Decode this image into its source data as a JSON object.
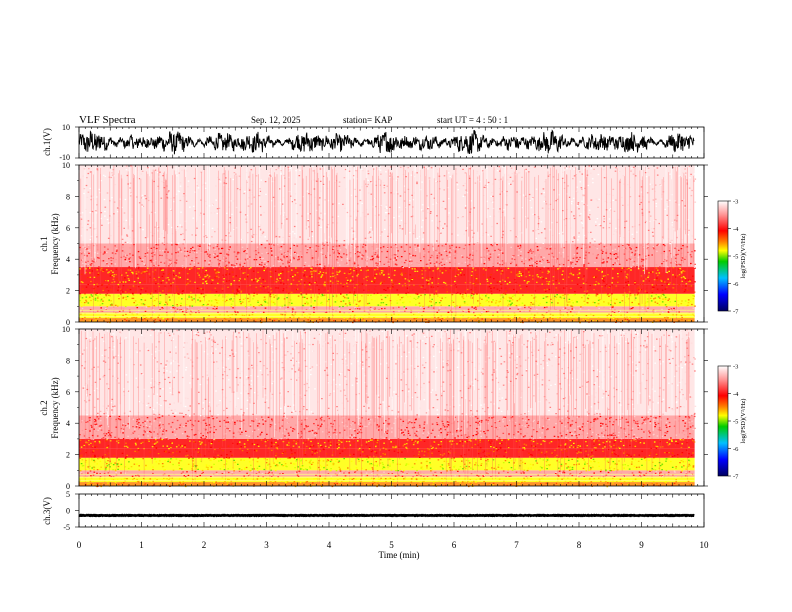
{
  "header": {
    "title": "VLF Spectra",
    "date": "Sep. 12, 2025",
    "station": "station= KAP",
    "start": "start  UT =   4 : 50 : 1"
  },
  "colorbar": {
    "label": "log(PSD)(V²/Hz)",
    "ticks": [
      -3,
      -4,
      -5,
      -6,
      -7
    ],
    "colors": [
      "#ffffff",
      "#ff6666",
      "#ff0000",
      "#ff8000",
      "#ffff00",
      "#00cc00",
      "#00c0ff",
      "#0000ff",
      "#000080"
    ]
  },
  "chart_data": [
    {
      "type": "line",
      "name": "ch1-waveform",
      "ylabel": "ch.1(V)",
      "ylim": [
        -10,
        10
      ],
      "ytick_labels": [
        "10",
        "-10"
      ],
      "xlim": [
        0,
        10
      ],
      "description_series": [
        {
          "name": "ch.1 voltage",
          "approx_range": [
            -8,
            8
          ],
          "x_end": 9.85
        }
      ]
    },
    {
      "type": "heatmap",
      "name": "ch1-spectrogram",
      "ylabel": "Frequency (kHz)",
      "channel_label": "ch.1",
      "ylim": [
        0,
        10
      ],
      "yticks": [
        0,
        2,
        4,
        6,
        8,
        10
      ],
      "xlim": [
        0,
        9.85
      ],
      "bands": [
        {
          "from": 0.0,
          "to": 0.25,
          "intensity": "orange"
        },
        {
          "from": 0.25,
          "to": 0.6,
          "intensity": "yellow"
        },
        {
          "from": 0.6,
          "to": 1.0,
          "intensity": "red"
        },
        {
          "from": 1.0,
          "to": 1.8,
          "intensity": "yellow-green"
        },
        {
          "from": 1.8,
          "to": 2.4,
          "intensity": "red-orange"
        },
        {
          "from": 2.4,
          "to": 3.5,
          "intensity": "red-yellow"
        },
        {
          "from": 3.5,
          "to": 5.0,
          "intensity": "red"
        },
        {
          "from": 5.0,
          "to": 10.0,
          "intensity": "light-red"
        }
      ]
    },
    {
      "type": "heatmap",
      "name": "ch2-spectrogram",
      "ylabel": "Frequency (kHz)",
      "channel_label": "ch.2",
      "ylim": [
        0,
        10
      ],
      "yticks": [
        0,
        2,
        4,
        6,
        8,
        10
      ],
      "xlim": [
        0,
        9.85
      ],
      "bands": [
        {
          "from": 0.0,
          "to": 0.25,
          "intensity": "orange"
        },
        {
          "from": 0.25,
          "to": 0.6,
          "intensity": "yellow"
        },
        {
          "from": 0.6,
          "to": 1.0,
          "intensity": "red"
        },
        {
          "from": 1.0,
          "to": 1.8,
          "intensity": "yellow-green"
        },
        {
          "from": 1.8,
          "to": 2.4,
          "intensity": "red-orange"
        },
        {
          "from": 2.4,
          "to": 3.0,
          "intensity": "red-yellow"
        },
        {
          "from": 3.0,
          "to": 4.5,
          "intensity": "red"
        },
        {
          "from": 4.5,
          "to": 10.0,
          "intensity": "light-red"
        }
      ]
    },
    {
      "type": "line",
      "name": "ch3-waveform",
      "ylabel": "ch.3(V)",
      "ylim": [
        -5,
        5
      ],
      "yticks": [
        -5,
        0,
        5
      ],
      "xlim": [
        0,
        10
      ],
      "xlabel": "Time (min)",
      "xticks": [
        0,
        1,
        2,
        3,
        4,
        5,
        6,
        7,
        8,
        9,
        10
      ],
      "description_series": [
        {
          "name": "ch.3 voltage",
          "approx_center": -1.5,
          "approx_halfwidth": 0.5,
          "x_end": 9.85
        }
      ]
    }
  ]
}
